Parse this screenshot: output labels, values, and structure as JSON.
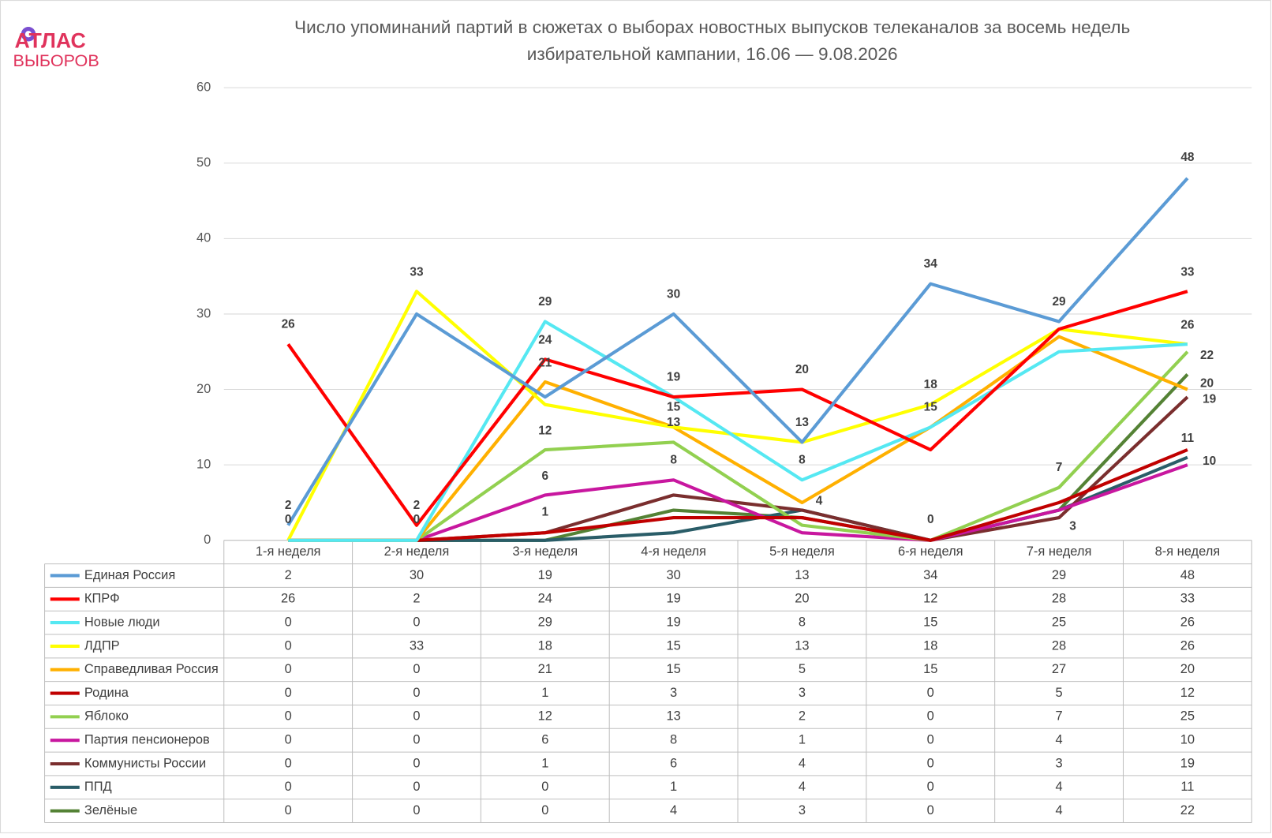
{
  "logo": {
    "line1": "АТЛАС",
    "line2": "ВЫБОРОВ"
  },
  "chart_data": {
    "type": "line",
    "title": "Число упоминаний партий в сюжетах о выборах новостных выпусков телеканалов за восемь недель",
    "subtitle": "избирательной кампании, 16.06 — 9.08.2026",
    "categories": [
      "1-я неделя",
      "2-я неделя",
      "3-я неделя",
      "4-я неделя",
      "5-я неделя",
      "6-я неделя",
      "7-я неделя",
      "8-я неделя"
    ],
    "ylim": [
      0,
      60
    ],
    "yticks": [
      0,
      10,
      20,
      30,
      40,
      50,
      60
    ],
    "grid": true,
    "series": [
      {
        "name": "Единая Россия",
        "color": "#5b9bd5",
        "values": [
          2,
          30,
          19,
          30,
          13,
          34,
          29,
          48
        ]
      },
      {
        "name": "КПРФ",
        "color": "#ff0000",
        "values": [
          26,
          2,
          24,
          19,
          20,
          12,
          28,
          33
        ]
      },
      {
        "name": "Новые люди",
        "color": "#55e8f2",
        "values": [
          0,
          0,
          29,
          19,
          8,
          15,
          25,
          26
        ]
      },
      {
        "name": "ЛДПР",
        "color": "#ffff00",
        "values": [
          0,
          33,
          18,
          15,
          13,
          18,
          28,
          26
        ]
      },
      {
        "name": "Справедливая Россия",
        "color": "#ffb000",
        "values": [
          0,
          0,
          21,
          15,
          5,
          15,
          27,
          20
        ]
      },
      {
        "name": "Родина",
        "color": "#c00000",
        "values": [
          0,
          0,
          1,
          3,
          3,
          0,
          5,
          12
        ]
      },
      {
        "name": "Яблоко",
        "color": "#92d050",
        "values": [
          0,
          0,
          12,
          13,
          2,
          0,
          7,
          25
        ]
      },
      {
        "name": "Партия пенсионеров",
        "color": "#c8179f",
        "values": [
          0,
          0,
          6,
          8,
          1,
          0,
          4,
          10
        ]
      },
      {
        "name": "Коммунисты России",
        "color": "#7a2e2e",
        "values": [
          0,
          0,
          1,
          6,
          4,
          0,
          3,
          19
        ]
      },
      {
        "name": "ППД",
        "color": "#2a5d68",
        "values": [
          0,
          0,
          0,
          1,
          4,
          0,
          4,
          11
        ]
      },
      {
        "name": "Зелёные",
        "color": "#548235",
        "values": [
          0,
          0,
          0,
          4,
          3,
          0,
          4,
          22
        ]
      }
    ]
  }
}
